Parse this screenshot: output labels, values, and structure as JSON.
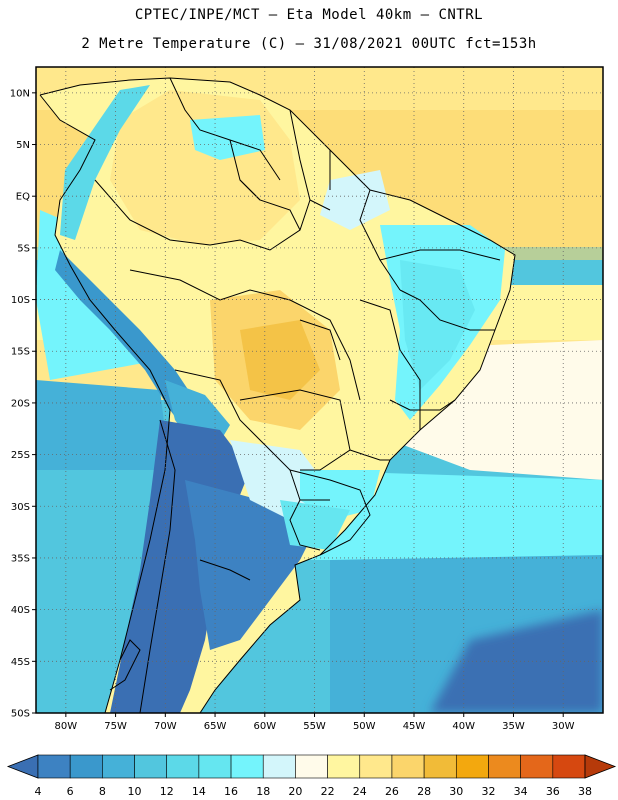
{
  "title": {
    "line1": "CPTEC/INPE/MCT –  Eta Model 40km – CNTRL",
    "line2": "2 Metre Temperature (C) – 31/08/2021 00UTC fct=153h"
  },
  "axes": {
    "lat_labels": [
      "10N",
      "5N",
      "EQ",
      "5S",
      "10S",
      "15S",
      "20S",
      "25S",
      "30S",
      "35S",
      "40S",
      "45S",
      "50S"
    ],
    "lat_values": [
      10,
      5,
      0,
      -5,
      -10,
      -15,
      -20,
      -25,
      -30,
      -35,
      -40,
      -45,
      -50
    ],
    "lon_labels": [
      "80W",
      "75W",
      "70W",
      "65W",
      "60W",
      "55W",
      "50W",
      "45W",
      "40W",
      "35W",
      "30W"
    ],
    "lon_values": [
      -80,
      -75,
      -70,
      -65,
      -60,
      -55,
      -50,
      -45,
      -40,
      -35,
      -30
    ],
    "lon_range": [
      -83,
      -26
    ],
    "lat_range": [
      -50,
      12.5
    ]
  },
  "colorbar": {
    "levels": [
      4,
      6,
      8,
      10,
      12,
      14,
      16,
      18,
      20,
      22,
      24,
      26,
      28,
      30,
      32,
      34,
      36,
      38
    ],
    "labels": [
      "4",
      "6",
      "8",
      "10",
      "12",
      "14",
      "16",
      "18",
      "20",
      "22",
      "24",
      "26",
      "28",
      "30",
      "32",
      "34",
      "36",
      "38"
    ],
    "colors": [
      "#3a6fb3",
      "#3d82c2",
      "#3a98cc",
      "#45b1d8",
      "#52c6de",
      "#5cd9e8",
      "#65e6f0",
      "#74f4fc",
      "#d3f6fb",
      "#fffbea",
      "#fff6a0",
      "#ffe88c",
      "#fbd56b",
      "#f1bb38",
      "#f3a80e",
      "#ec8a1e",
      "#e4671a",
      "#d64810",
      "#b63a0a"
    ],
    "low_arrow_color": "#3a6fb3",
    "high_arrow_color": "#b63a0a"
  }
}
